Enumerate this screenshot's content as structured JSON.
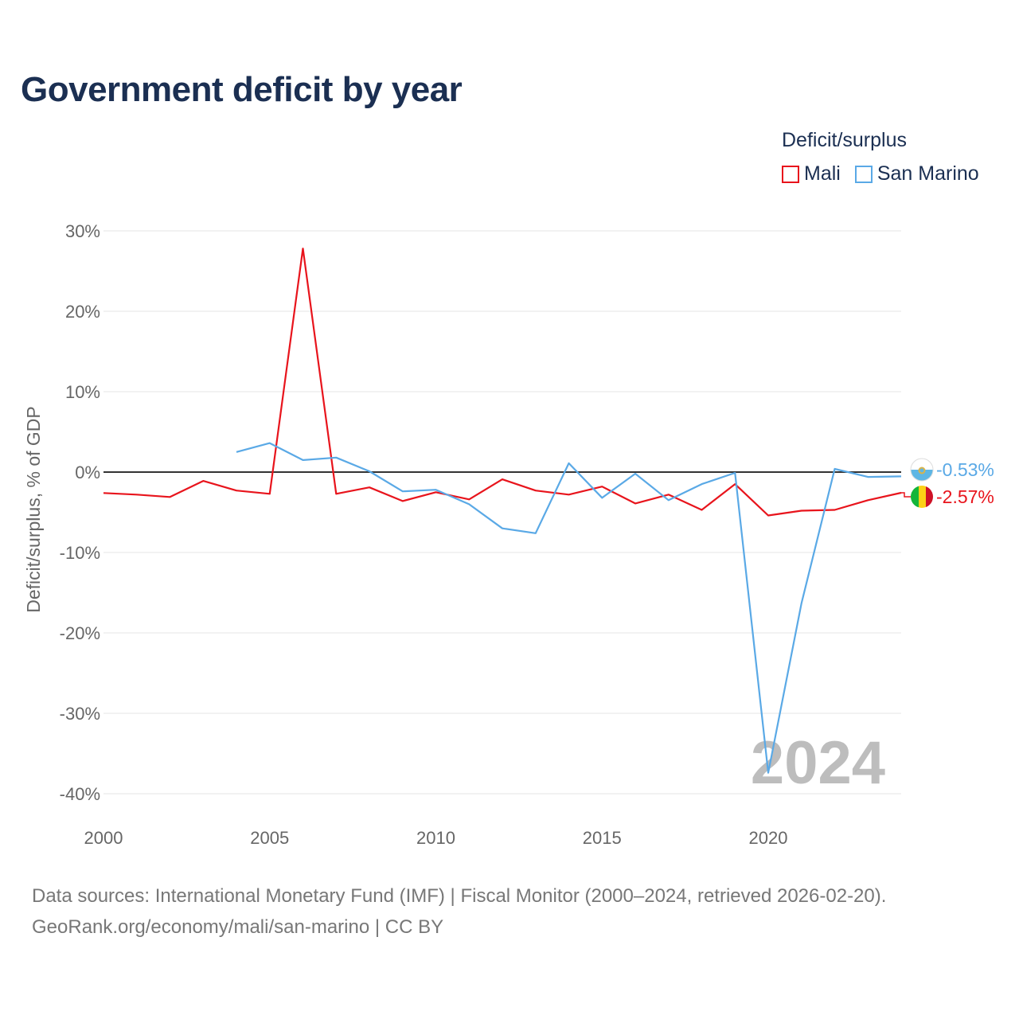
{
  "title": "Government deficit by year",
  "legend": {
    "title": "Deficit/surplus",
    "items": [
      {
        "label": "Mali",
        "color": "#e8141c"
      },
      {
        "label": "San Marino",
        "color": "#5aa9e6"
      }
    ]
  },
  "source": {
    "line1": "Data sources: International Monetary Fund (IMF) | Fiscal Monitor (2000–2024, retrieved 2026-02-20).",
    "line2": "GeoRank.org/economy/mali/san-marino | CC BY"
  },
  "chart_data": {
    "type": "line",
    "title": "Government deficit by year",
    "xlabel": "",
    "ylabel": "Deficit/surplus, % of GDP",
    "xlim": [
      2000,
      2024
    ],
    "ylim": [
      -40,
      30
    ],
    "x_ticks": [
      2000,
      2005,
      2010,
      2015,
      2020
    ],
    "x_tick_labels": [
      "2000",
      "2005",
      "2010",
      "2015",
      "2020"
    ],
    "y_ticks": [
      30,
      20,
      10,
      0,
      -10,
      -20,
      -30,
      -40
    ],
    "y_tick_labels": [
      "30%",
      "20%",
      "10%",
      "0%",
      "-10%",
      "-20%",
      "-30%",
      "-40%"
    ],
    "zero_line": true,
    "grid": true,
    "watermark": "2024",
    "series": [
      {
        "name": "Mali",
        "color": "#e8141c",
        "end_label": "-2.57%",
        "points": [
          [
            2000,
            -2.6
          ],
          [
            2001,
            -2.8
          ],
          [
            2002,
            -3.1
          ],
          [
            2003,
            -1.1
          ],
          [
            2004,
            -2.3
          ],
          [
            2005,
            -2.7
          ],
          [
            2006,
            27.8
          ],
          [
            2007,
            -2.7
          ],
          [
            2008,
            -1.9
          ],
          [
            2009,
            -3.6
          ],
          [
            2010,
            -2.5
          ],
          [
            2011,
            -3.4
          ],
          [
            2012,
            -0.9
          ],
          [
            2013,
            -2.3
          ],
          [
            2014,
            -2.8
          ],
          [
            2015,
            -1.8
          ],
          [
            2016,
            -3.9
          ],
          [
            2017,
            -2.8
          ],
          [
            2018,
            -4.7
          ],
          [
            2019,
            -1.5
          ],
          [
            2020,
            -5.4
          ],
          [
            2021,
            -4.8
          ],
          [
            2022,
            -4.7
          ],
          [
            2023,
            -3.5
          ],
          [
            2024,
            -2.57
          ]
        ]
      },
      {
        "name": "San Marino",
        "color": "#5aa9e6",
        "end_label": "-0.53%",
        "points": [
          [
            2004,
            2.5
          ],
          [
            2005,
            3.6
          ],
          [
            2006,
            1.5
          ],
          [
            2007,
            1.8
          ],
          [
            2008,
            0.1
          ],
          [
            2009,
            -2.4
          ],
          [
            2010,
            -2.2
          ],
          [
            2011,
            -4.0
          ],
          [
            2012,
            -7.0
          ],
          [
            2013,
            -7.6
          ],
          [
            2014,
            1.1
          ],
          [
            2015,
            -3.2
          ],
          [
            2016,
            -0.2
          ],
          [
            2017,
            -3.5
          ],
          [
            2018,
            -1.5
          ],
          [
            2019,
            -0.1
          ],
          [
            2020,
            -37.4
          ],
          [
            2021,
            -16.3
          ],
          [
            2022,
            0.4
          ],
          [
            2023,
            -0.6
          ],
          [
            2024,
            -0.53
          ]
        ]
      }
    ]
  }
}
